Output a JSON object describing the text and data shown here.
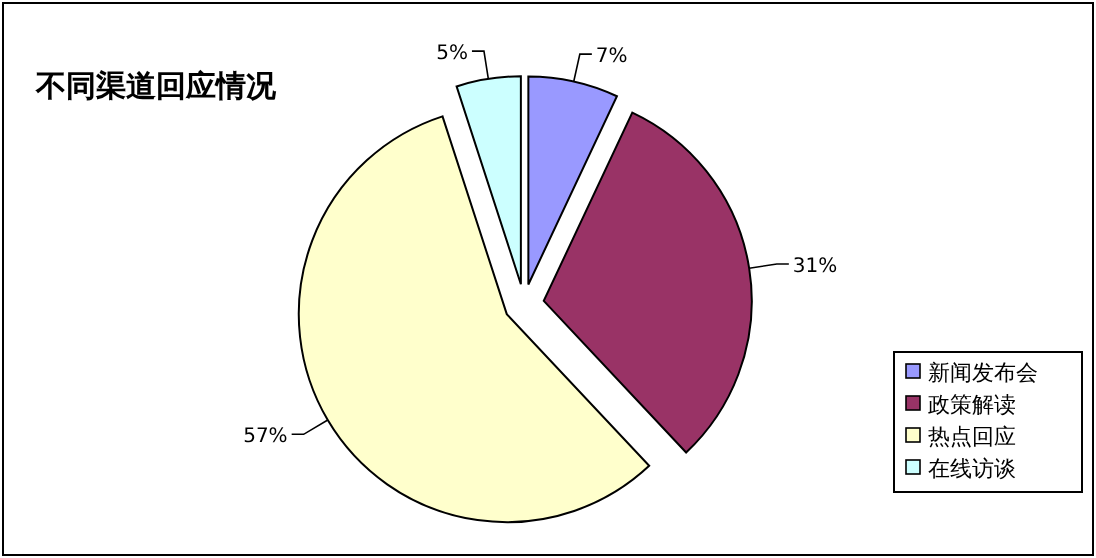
{
  "chart_data": {
    "type": "pie",
    "title": "不同渠道回应情况",
    "categories": [
      "新闻发布会",
      "政策解读",
      "热点回应",
      "在线访谈"
    ],
    "values": [
      7,
      31,
      57,
      5
    ],
    "colors": [
      "#9999ff",
      "#993366",
      "#ffffcc",
      "#ccffff"
    ],
    "legend": "right",
    "value_labels": [
      "7%",
      "31%",
      "57%",
      "5%"
    ]
  }
}
